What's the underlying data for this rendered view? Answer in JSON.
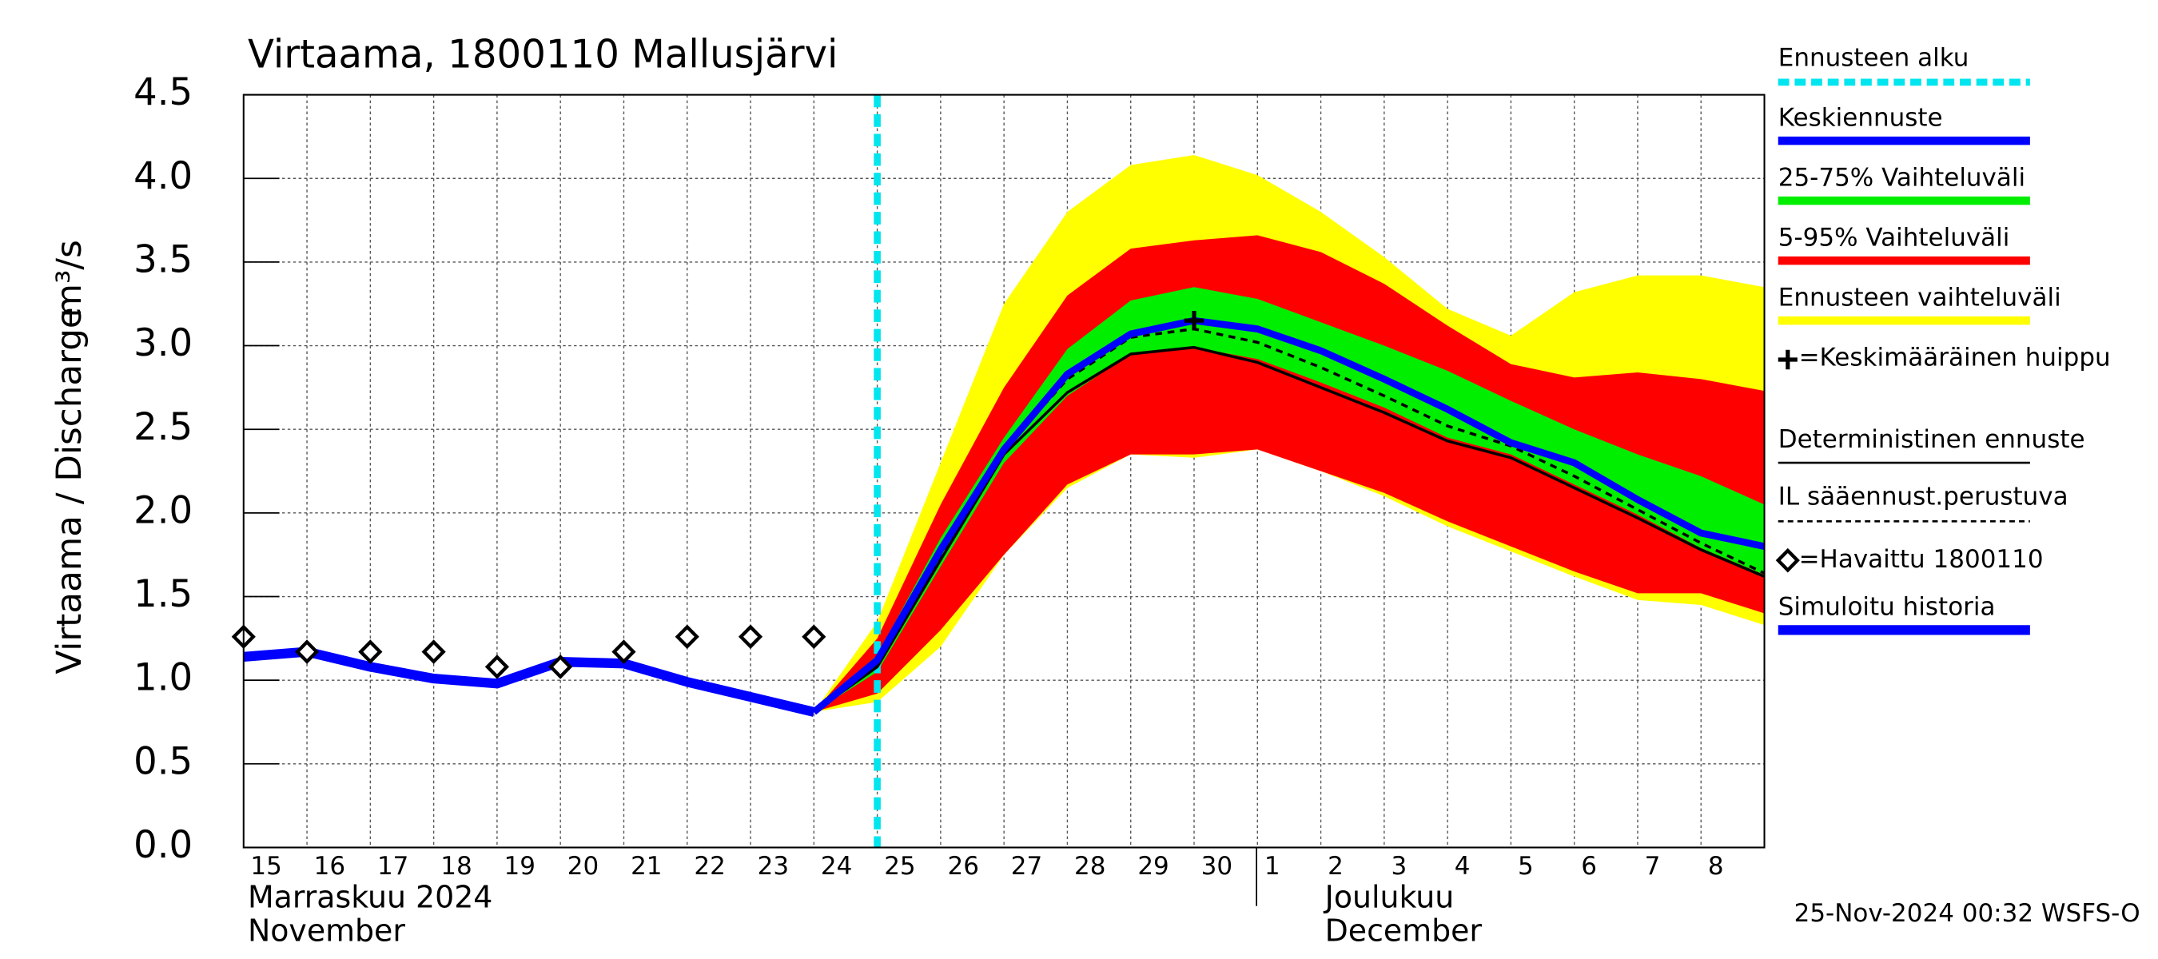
{
  "chart_data": {
    "type": "line",
    "title": "Virtaama, 1800110 Mallusjärvi",
    "y_label": "Virtaama / Discharge",
    "y_unit": "m³/s",
    "footer": "25-Nov-2024 00:32 WSFS-O",
    "grid": true,
    "x": [
      "2024-11-15",
      "2024-11-16",
      "2024-11-17",
      "2024-11-18",
      "2024-11-19",
      "2024-11-20",
      "2024-11-21",
      "2024-11-22",
      "2024-11-23",
      "2024-11-24",
      "2024-11-25",
      "2024-11-26",
      "2024-11-27",
      "2024-11-28",
      "2024-11-29",
      "2024-11-30",
      "2024-12-01",
      "2024-12-02",
      "2024-12-03",
      "2024-12-04",
      "2024-12-05",
      "2024-12-06",
      "2024-12-07",
      "2024-12-08",
      "2024-12-09"
    ],
    "xlim": [
      "2024-11-15",
      "2024-12-09"
    ],
    "xticks": [
      {
        "value": "2024-11-15",
        "label": "15"
      },
      {
        "value": "2024-11-16",
        "label": "16"
      },
      {
        "value": "2024-11-17",
        "label": "17"
      },
      {
        "value": "2024-11-18",
        "label": "18"
      },
      {
        "value": "2024-11-19",
        "label": "19"
      },
      {
        "value": "2024-11-20",
        "label": "20"
      },
      {
        "value": "2024-11-21",
        "label": "21"
      },
      {
        "value": "2024-11-22",
        "label": "22"
      },
      {
        "value": "2024-11-23",
        "label": "23"
      },
      {
        "value": "2024-11-24",
        "label": "24"
      },
      {
        "value": "2024-11-25",
        "label": "25"
      },
      {
        "value": "2024-11-26",
        "label": "26"
      },
      {
        "value": "2024-11-27",
        "label": "27"
      },
      {
        "value": "2024-11-28",
        "label": "28"
      },
      {
        "value": "2024-11-29",
        "label": "29"
      },
      {
        "value": "2024-11-30",
        "label": "30"
      },
      {
        "value": "2024-12-01",
        "label": "1"
      },
      {
        "value": "2024-12-02",
        "label": "2"
      },
      {
        "value": "2024-12-03",
        "label": "3"
      },
      {
        "value": "2024-12-04",
        "label": "4"
      },
      {
        "value": "2024-12-05",
        "label": "5"
      },
      {
        "value": "2024-12-06",
        "label": "6"
      },
      {
        "value": "2024-12-07",
        "label": "7"
      },
      {
        "value": "2024-12-08",
        "label": "8"
      }
    ],
    "month_labels": [
      {
        "value": "2024-11-15",
        "label": "Marraskuu 2024",
        "label_en": "November"
      },
      {
        "value": "2024-12-01",
        "label": "Joulukuu",
        "label_en": "December"
      }
    ],
    "ylim": [
      0,
      4.5
    ],
    "yticks": [
      {
        "value": 0,
        "label": "0.0"
      },
      {
        "value": 0.5,
        "label": "0.5"
      },
      {
        "value": 1,
        "label": "1.0"
      },
      {
        "value": 1.5,
        "label": "1.5"
      },
      {
        "value": 2,
        "label": "2.0"
      },
      {
        "value": 2.5,
        "label": "2.5"
      },
      {
        "value": 3,
        "label": "3.0"
      },
      {
        "value": 3.5,
        "label": "3.5"
      },
      {
        "value": 4,
        "label": "4.0"
      },
      {
        "value": 4.5,
        "label": "4.5"
      }
    ],
    "forecast_start": {
      "name": "Ennusteen alku",
      "x": "2024-11-25",
      "color": "#00e5ee"
    },
    "bands": [
      {
        "name": "Ennusteen vaihteluväli",
        "color": "#ffff00",
        "lower": [
          null,
          null,
          null,
          null,
          null,
          null,
          null,
          null,
          null,
          0.81,
          0.87,
          1.2,
          1.75,
          2.15,
          2.35,
          2.33,
          2.38,
          2.25,
          2.1,
          1.92,
          1.77,
          1.62,
          1.48,
          1.45,
          1.33
        ],
        "upper": [
          null,
          null,
          null,
          null,
          null,
          null,
          null,
          null,
          null,
          0.81,
          1.35,
          2.3,
          3.25,
          3.8,
          4.08,
          4.14,
          4.02,
          3.8,
          3.53,
          3.22,
          3.06,
          3.32,
          3.42,
          3.42,
          3.35
        ]
      },
      {
        "name": "5-95% Vaihteluväli",
        "color": "#ff0000",
        "lower": [
          null,
          null,
          null,
          null,
          null,
          null,
          null,
          null,
          null,
          0.81,
          0.92,
          1.3,
          1.75,
          2.17,
          2.35,
          2.35,
          2.38,
          2.25,
          2.12,
          1.95,
          1.8,
          1.65,
          1.52,
          1.52,
          1.4
        ],
        "upper": [
          null,
          null,
          null,
          null,
          null,
          null,
          null,
          null,
          null,
          0.81,
          1.25,
          2.05,
          2.75,
          3.3,
          3.58,
          3.63,
          3.66,
          3.56,
          3.37,
          3.12,
          2.89,
          2.81,
          2.84,
          2.8,
          2.73
        ]
      },
      {
        "name": "25-75% Vaihteluväli",
        "color": "#00ee00",
        "lower": [
          null,
          null,
          null,
          null,
          null,
          null,
          null,
          null,
          null,
          0.81,
          1.05,
          1.68,
          2.3,
          2.7,
          2.95,
          2.99,
          2.92,
          2.78,
          2.63,
          2.45,
          2.35,
          2.17,
          1.99,
          1.79,
          1.63
        ],
        "upper": [
          null,
          null,
          null,
          null,
          null,
          null,
          null,
          null,
          null,
          0.81,
          1.15,
          1.85,
          2.45,
          2.98,
          3.27,
          3.35,
          3.28,
          3.14,
          3.0,
          2.85,
          2.67,
          2.5,
          2.35,
          2.22,
          2.05
        ]
      }
    ],
    "series": [
      {
        "name": "Simuloitu historia",
        "color": "#0000ff",
        "width": 7,
        "values": [
          1.14,
          1.17,
          1.08,
          1.01,
          0.98,
          1.11,
          1.1,
          0.99,
          0.9,
          0.81,
          null,
          null,
          null,
          null,
          null,
          null,
          null,
          null,
          null,
          null,
          null,
          null,
          null,
          null,
          null
        ]
      },
      {
        "name": "Deterministinen ennuste",
        "color": "#000000",
        "width": 2,
        "values": [
          null,
          null,
          null,
          null,
          null,
          null,
          null,
          null,
          null,
          0.81,
          1.08,
          1.72,
          2.35,
          2.72,
          2.95,
          2.99,
          2.9,
          2.75,
          2.6,
          2.43,
          2.33,
          2.15,
          1.97,
          1.78,
          1.62
        ]
      },
      {
        "name": "IL sääennust.perustuva",
        "color": "#000000",
        "width": 2,
        "dash": true,
        "values": [
          null,
          null,
          null,
          null,
          null,
          null,
          null,
          null,
          null,
          0.81,
          1.1,
          1.75,
          2.38,
          2.8,
          3.05,
          3.1,
          3.02,
          2.87,
          2.7,
          2.52,
          2.4,
          2.22,
          2.02,
          1.82,
          1.64
        ]
      },
      {
        "name": "Keskiennuste",
        "color": "#0000ff",
        "width": 5,
        "values": [
          null,
          null,
          null,
          null,
          null,
          null,
          null,
          null,
          null,
          0.81,
          1.12,
          1.78,
          2.38,
          2.83,
          3.07,
          3.15,
          3.1,
          2.97,
          2.8,
          2.62,
          2.42,
          2.3,
          2.08,
          1.88,
          1.8
        ]
      },
      {
        "name": "=Havaittu 1800110",
        "color": "#000000",
        "marker": "diamond",
        "values": [
          1.26,
          1.17,
          1.17,
          1.17,
          1.08,
          1.08,
          1.17,
          1.26,
          1.26,
          1.26,
          null,
          null,
          null,
          null,
          null,
          null,
          null,
          null,
          null,
          null,
          null,
          null,
          null,
          null,
          null
        ]
      }
    ],
    "peak": {
      "name": "=Keskimääräinen huippu",
      "x": "2024-11-30",
      "value": 3.15,
      "color": "#000000"
    }
  }
}
